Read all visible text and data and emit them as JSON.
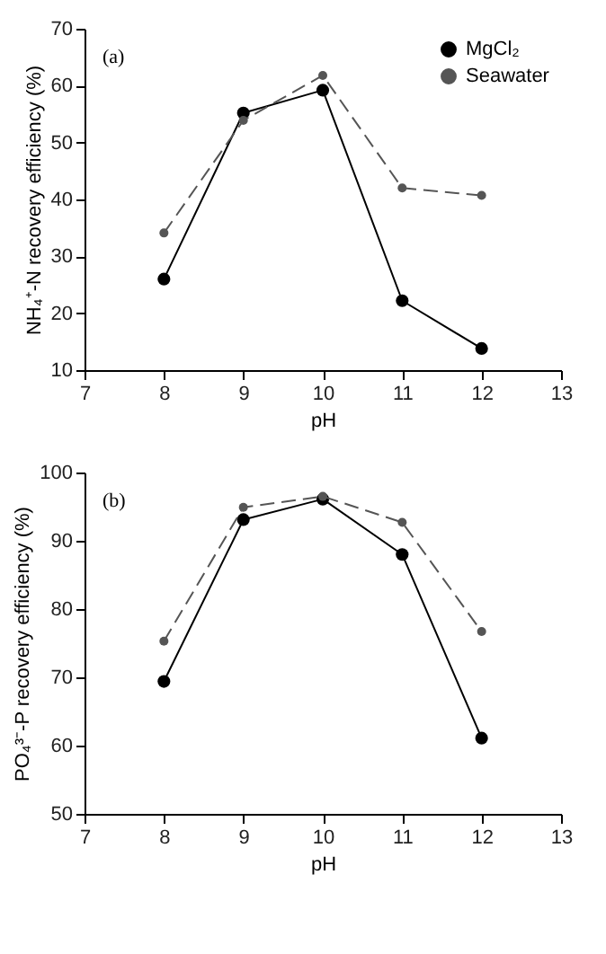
{
  "chart_data": [
    {
      "type": "line",
      "annotations": [
        "(a)"
      ],
      "xlabel": "pH",
      "ylabel": "NH₄⁺-N recovery efficiency (%)",
      "x": [
        8,
        9,
        10,
        11,
        12
      ],
      "xlim": [
        7,
        13
      ],
      "xticks": [
        7,
        8,
        9,
        10,
        11,
        12,
        13
      ],
      "ylim": [
        10,
        70
      ],
      "yticks": [
        10,
        20,
        30,
        40,
        50,
        60,
        70
      ],
      "grid": false,
      "legend": "top right",
      "marker": "circle",
      "series": [
        {
          "name": "MgCl₂",
          "color": "#000000",
          "line_style": "solid",
          "values": [
            26,
            55.2,
            59.2,
            22.2,
            13.8
          ]
        },
        {
          "name": "Seawater",
          "color": "#555555",
          "line_style": "dashed",
          "values": [
            34.1,
            53.9,
            61.8,
            42,
            40.7
          ]
        }
      ]
    },
    {
      "type": "line",
      "annotations": [
        "(b)"
      ],
      "xlabel": "pH",
      "ylabel": "PO₄³⁻-P recovery efficiency (%)",
      "x": [
        8,
        9,
        10,
        11,
        12
      ],
      "xlim": [
        7,
        13
      ],
      "xticks": [
        7,
        8,
        9,
        10,
        11,
        12,
        13
      ],
      "ylim": [
        50,
        100
      ],
      "yticks": [
        50,
        60,
        70,
        80,
        90,
        100
      ],
      "grid": false,
      "legend": false,
      "marker": "circle",
      "series": [
        {
          "color": "#000000",
          "line_style": "solid",
          "values": [
            69.4,
            93.1,
            96.1,
            88,
            61.1
          ]
        },
        {
          "color": "#555555",
          "line_style": "dashed",
          "values": [
            75.3,
            94.9,
            96.5,
            92.7,
            76.7
          ]
        }
      ]
    }
  ]
}
